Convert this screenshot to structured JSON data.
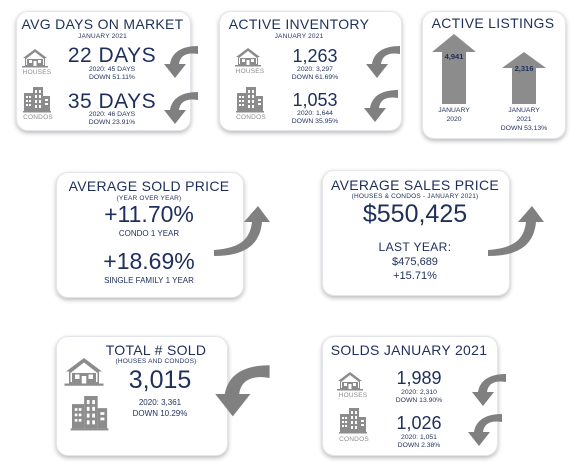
{
  "avg_days": {
    "title": "AVG DAYS ON MARKET",
    "subtitle": "JANUARY 2021",
    "houses": {
      "label": "HOUSES",
      "value": "22 DAYS",
      "line1": "2020: 45 DAYS",
      "line2": "DOWN 51.11%"
    },
    "condos": {
      "label": "CONDOS",
      "value": "35 DAYS",
      "line1": "2020: 46 DAYS",
      "line2": "DOWN 23.91%"
    }
  },
  "inventory": {
    "title": "ACTIVE INVENTORY",
    "subtitle": "JANUARY 2021",
    "houses": {
      "label": "HOUSES",
      "value": "1,263",
      "line1": "2020: 3,297",
      "line2": "DOWN 61.69%"
    },
    "condos": {
      "label": "CONDOS",
      "value": "1,053",
      "line1": "2020: 1,644",
      "line2": "DOWN 35.95%"
    }
  },
  "listings": {
    "title": "ACTIVE LISTINGS",
    "left": {
      "value": "4,941",
      "line1": "JANUARY",
      "line2": "2020"
    },
    "right": {
      "value": "2,316",
      "line1": "JANUARY",
      "line2": "2021",
      "line3": "DOWN 53.13%"
    }
  },
  "sold_price": {
    "title": "AVERAGE SOLD PRICE",
    "subtitle": "(YEAR OVER YEAR)",
    "condo_value": "+11.70%",
    "condo_label": "CONDO 1 YEAR",
    "sf_value": "+18.69%",
    "sf_label": "SINGLE FAMILY 1 YEAR"
  },
  "sales_price": {
    "title": "AVERAGE SALES PRICE",
    "subtitle": "(HOUSES & CONDOS - JANUARY 2021)",
    "value": "$550,425",
    "last_label": "LAST YEAR:",
    "last_value": "$475,689",
    "change": "+15.71%"
  },
  "total_sold": {
    "title": "TOTAL # SOLD",
    "subtitle": "(HOUSES AND CONDOS)",
    "value": "3,015",
    "line1": "2020: 3,361",
    "line2": "DOWN 10.29%"
  },
  "solds": {
    "title": "SOLDS JANUARY 2021",
    "houses": {
      "label": "HOUSES",
      "value": "1,989",
      "line1": "2020: 2,310",
      "line2": "DOWN 13.90%"
    },
    "condos": {
      "label": "CONDOS",
      "value": "1,026",
      "line1": "2020: 1,051",
      "line2": "DOWN 2.38%"
    }
  },
  "colors": {
    "navy": "#1e2f5b",
    "gray": "#8c8c8c",
    "arrow": "#808080"
  }
}
